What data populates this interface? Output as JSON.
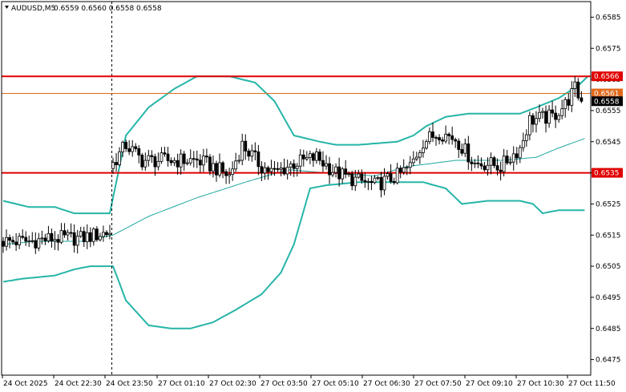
{
  "header": {
    "symbol": "AUDUSD,M5",
    "ohlc": "0.6559 0.6560 0.6558 0.6558"
  },
  "colors": {
    "background": "#ffffff",
    "band": "#26b5a8",
    "mid": "#20a8a0",
    "candle": "#000000",
    "level": "#e00000",
    "bid_line": "#e06a1c",
    "price_tag": "#000000"
  },
  "chart_data": {
    "type": "candlestick",
    "y_ticks": [
      0.6475,
      0.6485,
      0.6495,
      0.6505,
      0.6515,
      0.6525,
      0.6535,
      0.6545,
      0.6555,
      0.6565,
      0.6575,
      0.6585
    ],
    "y_tick_labels": [
      "0.6475",
      "0.6485",
      "0.6495",
      "0.6505",
      "0.6515",
      "0.6525",
      "0.6535",
      "0.6545",
      "0.6555",
      "0.6565",
      "0.6575",
      "0.6585"
    ],
    "ylim": [
      0.647,
      0.659
    ],
    "x_labels": [
      "24 Oct 2025",
      "24 Oct 22:30",
      "24 Oct 23:50",
      "27 Oct 01:10",
      "27 Oct 02:30",
      "27 Oct 03:50",
      "27 Oct 05:10",
      "27 Oct 06:30",
      "27 Oct 07:50",
      "27 Oct 09:10",
      "27 Oct 10:30",
      "27 Oct 11:50"
    ],
    "session_break_index": 34,
    "bar_count": 180,
    "levels": [
      {
        "value": 0.6566,
        "label": "0.6566",
        "color": "#e00000"
      },
      {
        "value": 0.6535,
        "label": "0.6535",
        "color": "#e00000"
      }
    ],
    "bid_line": {
      "value": 0.65605,
      "label": "0.6561"
    },
    "current_price": {
      "value": 0.6558,
      "label": "0.6558"
    },
    "candle_path": [
      [
        0,
        0.6513
      ],
      [
        8,
        0.6513
      ],
      [
        16,
        0.6514
      ],
      [
        24,
        0.6514
      ],
      [
        33,
        0.6516
      ],
      [
        34,
        0.6538
      ],
      [
        38,
        0.6544
      ],
      [
        43,
        0.6539
      ],
      [
        60,
        0.6539
      ],
      [
        65,
        0.6537
      ],
      [
        70,
        0.6534
      ],
      [
        74,
        0.6544
      ],
      [
        80,
        0.6537
      ],
      [
        84,
        0.6535
      ],
      [
        90,
        0.6538
      ],
      [
        97,
        0.654
      ],
      [
        103,
        0.6535
      ],
      [
        108,
        0.6533
      ],
      [
        115,
        0.6531
      ],
      [
        122,
        0.6534
      ],
      [
        126,
        0.6537
      ],
      [
        130,
        0.6545
      ],
      [
        135,
        0.6548
      ],
      [
        140,
        0.6546
      ],
      [
        146,
        0.6538
      ],
      [
        150,
        0.6538
      ],
      [
        154,
        0.6537
      ],
      [
        157,
        0.654
      ],
      [
        160,
        0.6543
      ],
      [
        163,
        0.6552
      ],
      [
        170,
        0.6553
      ],
      [
        174,
        0.6557
      ],
      [
        177,
        0.6562
      ],
      [
        179,
        0.6558
      ]
    ],
    "upper_band": [
      [
        0,
        0.6526
      ],
      [
        8,
        0.6524
      ],
      [
        16,
        0.6524
      ],
      [
        22,
        0.6522
      ],
      [
        33,
        0.6522
      ],
      [
        38,
        0.6547
      ],
      [
        45,
        0.6556
      ],
      [
        53,
        0.6562
      ],
      [
        60,
        0.6566
      ],
      [
        70,
        0.6566
      ],
      [
        78,
        0.6564
      ],
      [
        84,
        0.6558
      ],
      [
        90,
        0.6547
      ],
      [
        98,
        0.6545
      ],
      [
        103,
        0.6544
      ],
      [
        110,
        0.6544
      ],
      [
        122,
        0.6545
      ],
      [
        127,
        0.6547
      ],
      [
        131,
        0.655
      ],
      [
        137,
        0.6553
      ],
      [
        144,
        0.6554
      ],
      [
        160,
        0.6554
      ],
      [
        165,
        0.6556
      ],
      [
        172,
        0.6559
      ],
      [
        178,
        0.6563
      ],
      [
        181,
        0.6566
      ]
    ],
    "middle_band": [
      [
        0,
        0.6512
      ],
      [
        10,
        0.6513
      ],
      [
        25,
        0.6513
      ],
      [
        34,
        0.6515
      ],
      [
        45,
        0.6521
      ],
      [
        60,
        0.6527
      ],
      [
        75,
        0.6532
      ],
      [
        88,
        0.6536
      ],
      [
        100,
        0.6535
      ],
      [
        115,
        0.6534
      ],
      [
        125,
        0.6537
      ],
      [
        140,
        0.6539
      ],
      [
        155,
        0.6539
      ],
      [
        165,
        0.654
      ],
      [
        172,
        0.6543
      ],
      [
        180,
        0.6546
      ]
    ],
    "lower_band": [
      [
        0,
        0.65
      ],
      [
        6,
        0.6501
      ],
      [
        16,
        0.6502
      ],
      [
        22,
        0.6504
      ],
      [
        27,
        0.6505
      ],
      [
        34,
        0.6505
      ],
      [
        38,
        0.6494
      ],
      [
        45,
        0.6486
      ],
      [
        52,
        0.6485
      ],
      [
        58,
        0.6485
      ],
      [
        65,
        0.6487
      ],
      [
        72,
        0.6491
      ],
      [
        80,
        0.6496
      ],
      [
        86,
        0.6503
      ],
      [
        90,
        0.6512
      ],
      [
        95,
        0.653
      ],
      [
        100,
        0.6531
      ],
      [
        110,
        0.6532
      ],
      [
        120,
        0.6532
      ],
      [
        130,
        0.6532
      ],
      [
        137,
        0.653
      ],
      [
        142,
        0.6525
      ],
      [
        150,
        0.6526
      ],
      [
        160,
        0.6526
      ],
      [
        164,
        0.6525
      ],
      [
        167,
        0.6522
      ],
      [
        172,
        0.6523
      ],
      [
        180,
        0.6523
      ]
    ]
  }
}
